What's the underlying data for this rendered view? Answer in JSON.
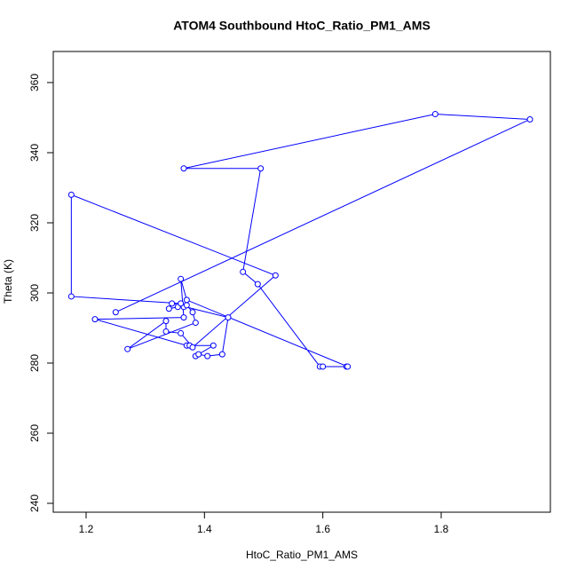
{
  "chart_data": {
    "type": "line",
    "title": "ATOM4 Southbound HtoC_Ratio_PM1_AMS",
    "x_label": "HtoC_Ratio_PM1_AMS",
    "y_label": "Theta (K)",
    "x": [
      1.25,
      1.95,
      1.79,
      1.365,
      1.495,
      1.465,
      1.49,
      1.595,
      1.6,
      1.64,
      1.642,
      1.37,
      1.36,
      1.365,
      1.215,
      1.37,
      1.375,
      1.415,
      1.385,
      1.39,
      1.405,
      1.43,
      1.44,
      1.345,
      1.34,
      1.355,
      1.365,
      1.37,
      1.38,
      1.385,
      1.27,
      1.335,
      1.335,
      1.36,
      1.38,
      1.52,
      1.175,
      1.175,
      1.36
    ],
    "series": [
      {
        "name": "Theta",
        "color": "#0000ff",
        "values": [
          294.5,
          349.5,
          351,
          335.5,
          335.5,
          306,
          302.5,
          279,
          279,
          279,
          279,
          298,
          304,
          293,
          292.5,
          285,
          285,
          285,
          282,
          282.5,
          282,
          282.5,
          293,
          297,
          295.5,
          296,
          296,
          296.5,
          294.5,
          291.5,
          284,
          292,
          289,
          288.5,
          284.5,
          305,
          328,
          299,
          297
        ]
      }
    ],
    "xlim": [
      1.1445,
      1.9845
    ],
    "ylim": [
      237.47,
      368.86
    ],
    "xticks": [
      1.2,
      1.4,
      1.6,
      1.8
    ],
    "yticks": [
      240,
      260,
      280,
      300,
      320,
      340,
      360
    ],
    "grid": false
  }
}
